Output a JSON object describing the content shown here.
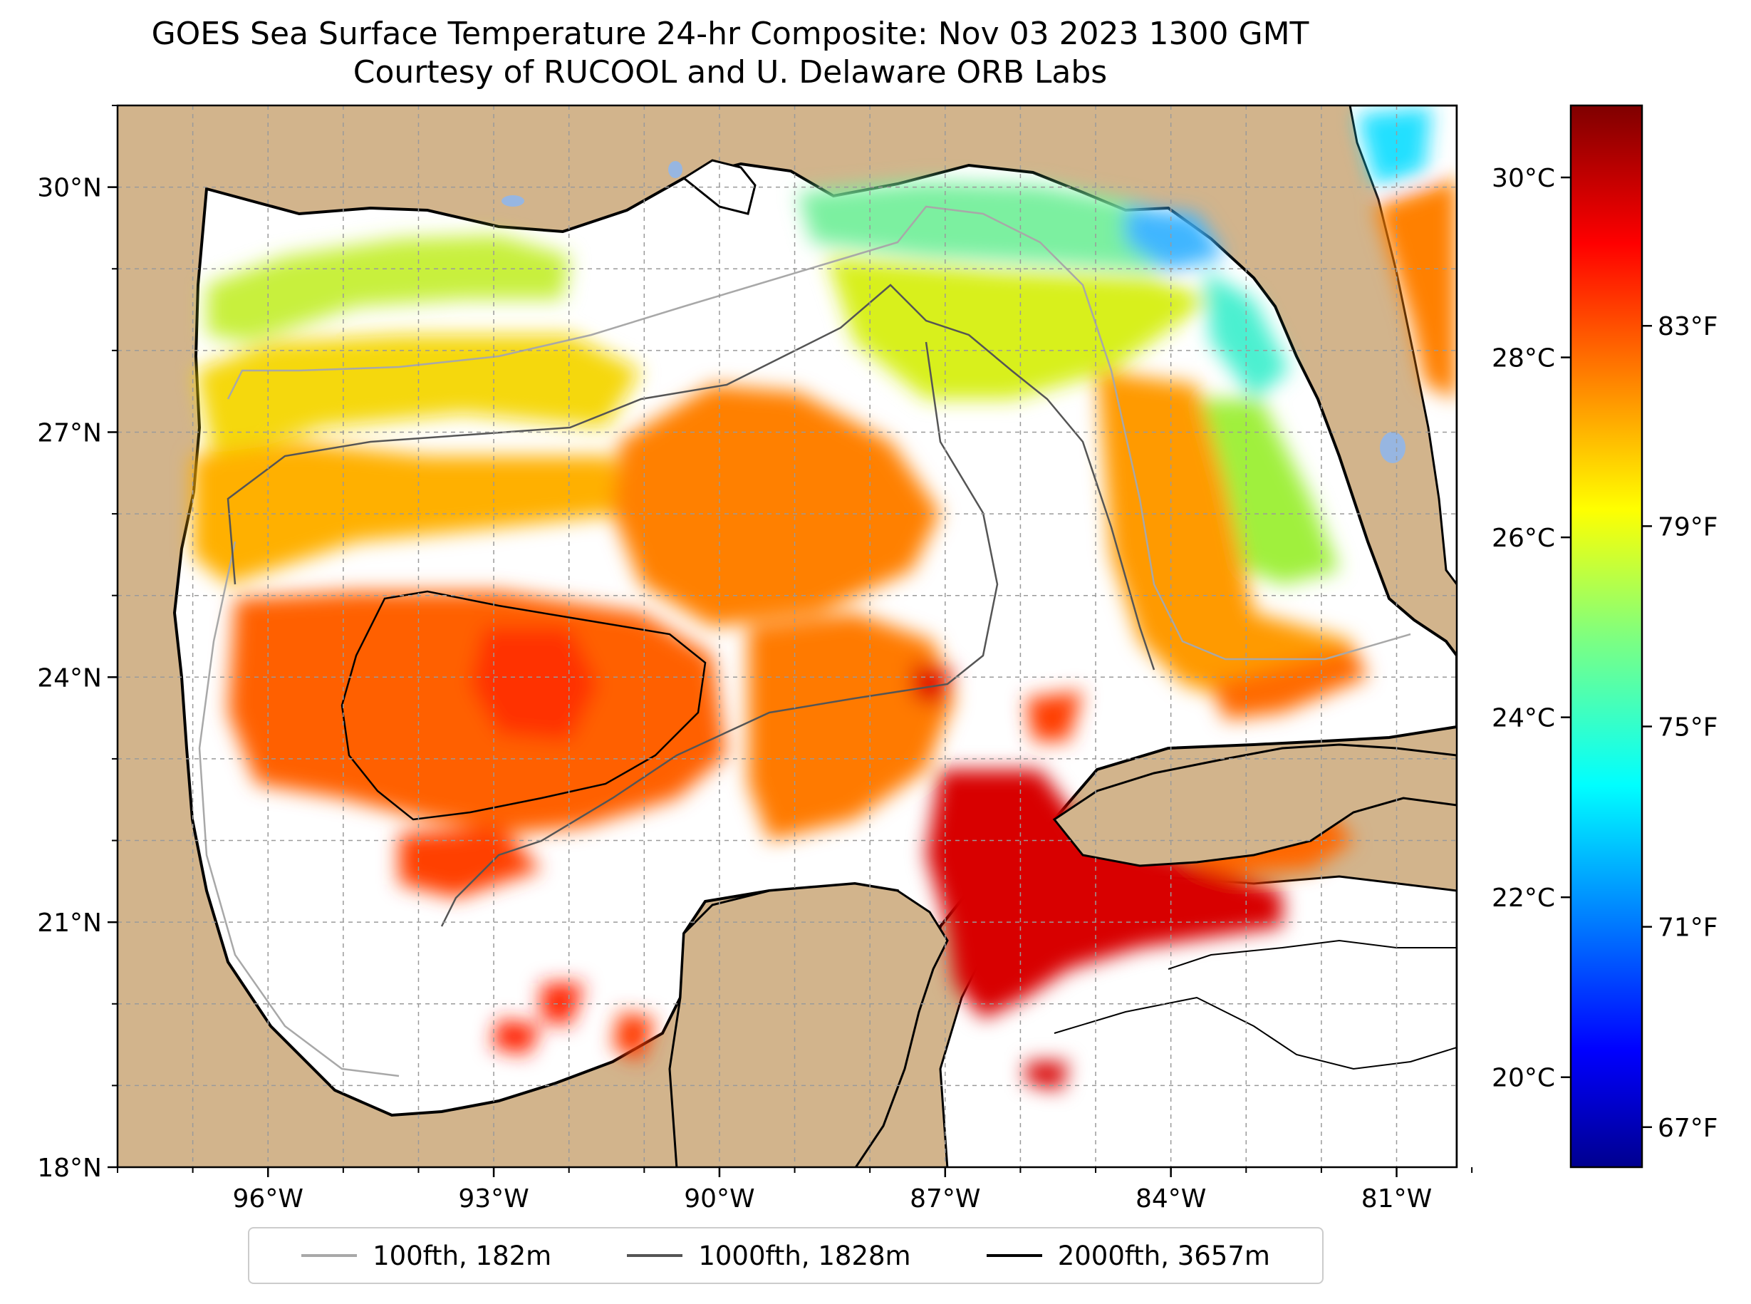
{
  "title": {
    "line1": "GOES Sea Surface Temperature 24-hr Composite: Nov 03 2023 1300 GMT",
    "line2": "Courtesy of RUCOOL and U. Delaware ORB Labs"
  },
  "map": {
    "extent": {
      "lon_min": -98,
      "lon_max": -80.2,
      "lat_min": 18,
      "lat_max": 31
    },
    "lat_ticks": [
      {
        "value": 30,
        "label": "30°N"
      },
      {
        "value": 27,
        "label": "27°N"
      },
      {
        "value": 24,
        "label": "24°N"
      },
      {
        "value": 21,
        "label": "21°N"
      },
      {
        "value": 18,
        "label": "18°N"
      }
    ],
    "lon_ticks": [
      {
        "value": -96,
        "label": "96°W"
      },
      {
        "value": -93,
        "label": "93°W"
      },
      {
        "value": -90,
        "label": "90°W"
      },
      {
        "value": -87,
        "label": "87°W"
      },
      {
        "value": -84,
        "label": "84°W"
      },
      {
        "value": -81,
        "label": "81°W"
      }
    ],
    "land_color": "#d2b48c",
    "water_color": "#ffffff",
    "lake_color": "#97b6e1"
  },
  "colorbar": {
    "celsius_range": [
      19,
      30.8
    ],
    "fahrenheit_range": [
      66.2,
      87.4
    ],
    "celsius_ticks": [
      {
        "value": 30,
        "label": "30°C"
      },
      {
        "value": 28,
        "label": "28°C"
      },
      {
        "value": 26,
        "label": "26°C"
      },
      {
        "value": 24,
        "label": "24°C"
      },
      {
        "value": 22,
        "label": "22°C"
      },
      {
        "value": 20,
        "label": "20°C"
      }
    ],
    "fahrenheit_ticks": [
      {
        "value": 83,
        "label": "83°F"
      },
      {
        "value": 79,
        "label": "79°F"
      },
      {
        "value": 75,
        "label": "75°F"
      },
      {
        "value": 71,
        "label": "71°F"
      },
      {
        "value": 67,
        "label": "67°F"
      }
    ],
    "colormap": "jet"
  },
  "legend": {
    "items": [
      {
        "label": "100fth, 182m",
        "color": "#a8a8a8"
      },
      {
        "label": "1000fth, 1828m",
        "color": "#555555"
      },
      {
        "label": "2000fth, 3657m",
        "color": "#000000"
      }
    ]
  }
}
